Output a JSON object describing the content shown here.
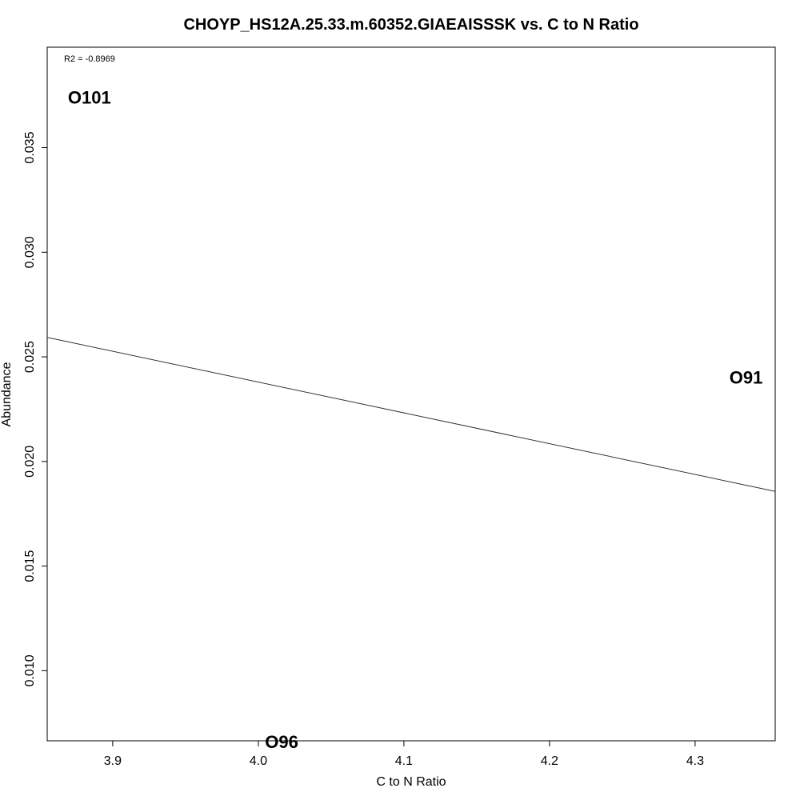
{
  "chart_data": {
    "type": "scatter",
    "title": "CHOYP_HS12A.25.33.m.60352.GIAEAISSSK vs. C to N Ratio",
    "xlabel": "C to N Ratio",
    "ylabel": "Abundance",
    "xlim": [
      3.855,
      4.355
    ],
    "ylim": [
      0.00665,
      0.0398
    ],
    "x_ticks": [
      3.9,
      4.0,
      4.1,
      4.2,
      4.3
    ],
    "y_ticks": [
      0.01,
      0.015,
      0.02,
      0.025,
      0.03,
      0.035
    ],
    "x_tick_labels": [
      "3.9",
      "4.0",
      "4.1",
      "4.2",
      "4.3"
    ],
    "y_tick_labels": [
      "0.010",
      "0.015",
      "0.020",
      "0.025",
      "0.030",
      "0.035"
    ],
    "points": [
      {
        "label": "O101",
        "x": 3.884,
        "y": 0.0374
      },
      {
        "label": "O91",
        "x": 4.335,
        "y": 0.024
      },
      {
        "label": "O96",
        "x": 4.016,
        "y": 0.0066
      }
    ],
    "regression_line": {
      "x": [
        3.855,
        4.355
      ],
      "y": [
        0.02593,
        0.01857
      ]
    },
    "annotation": "R2 = -0.8969",
    "grid": false,
    "legend": "none"
  }
}
